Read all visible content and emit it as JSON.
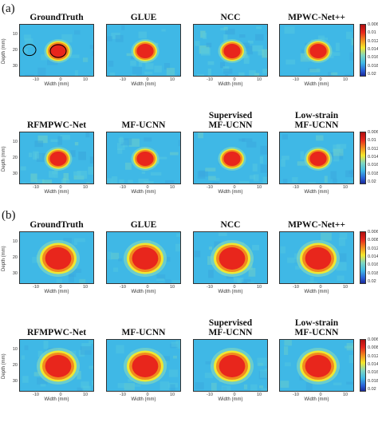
{
  "sections": [
    {
      "label": "(a)",
      "colorbar_ticks": [
        "0.006",
        "0.01",
        "0.012",
        "0.014",
        "0.016",
        "0.018",
        "0.02"
      ],
      "lesion": "small",
      "panels": [
        {
          "title": "GroundTruth",
          "ylabel": "Depth (mm)",
          "xlabel": "Width (mm)",
          "yticks": [
            "10",
            "20",
            "30"
          ],
          "xticks": [
            "-10",
            "0",
            "10"
          ],
          "markers": true,
          "noise": 0.15
        },
        {
          "title": "GLUE",
          "ylabel": "",
          "xlabel": "Width (mm)",
          "yticks": [],
          "xticks": [
            "-10",
            "0",
            "10"
          ],
          "markers": false,
          "noise": 0.3
        },
        {
          "title": "NCC",
          "ylabel": "",
          "xlabel": "Width (mm)",
          "yticks": [],
          "xticks": [
            "-10",
            "0",
            "10"
          ],
          "markers": false,
          "noise": 0.5
        },
        {
          "title": "MPWC-Net++",
          "ylabel": "",
          "xlabel": "Width (mm)",
          "yticks": [],
          "xticks": [
            "-10",
            "0",
            "10"
          ],
          "markers": false,
          "noise": 0.25
        },
        {
          "title": "RFMPWC-Net",
          "ylabel": "Depth (mm)",
          "xlabel": "Width (mm)",
          "yticks": [
            "10",
            "20",
            "30"
          ],
          "xticks": [
            "-10",
            "0",
            "10"
          ],
          "markers": false,
          "noise": 0.45
        },
        {
          "title": "MF-UCNN",
          "ylabel": "",
          "xlabel": "Width (mm)",
          "yticks": [],
          "xticks": [
            "-10",
            "0",
            "10"
          ],
          "markers": false,
          "noise": 0.3
        },
        {
          "title": "Supervised\nMF-UCNN",
          "ylabel": "",
          "xlabel": "Width (mm)",
          "yticks": [],
          "xticks": [
            "-10",
            "0",
            "10"
          ],
          "markers": false,
          "noise": 0.3
        },
        {
          "title": "Low-strain\nMF-UCNN",
          "ylabel": "",
          "xlabel": "Width (mm)",
          "yticks": [],
          "xticks": [
            "-10",
            "0",
            "10"
          ],
          "markers": false,
          "noise": 0.3
        }
      ]
    },
    {
      "label": "(b)",
      "colorbar_ticks": [
        "0.006",
        "0.008",
        "0.012",
        "0.014",
        "0.016",
        "0.018",
        "0.02"
      ],
      "lesion": "large",
      "panels": [
        {
          "title": "GroundTruth",
          "ylabel": "Depth (mm)",
          "xlabel": "Width (mm)",
          "yticks": [
            "10",
            "20",
            "30"
          ],
          "xticks": [
            "-10",
            "0",
            "10"
          ],
          "markers": false,
          "noise": 0.1
        },
        {
          "title": "GLUE",
          "ylabel": "",
          "xlabel": "Width (mm)",
          "yticks": [],
          "xticks": [
            "-10",
            "0",
            "10"
          ],
          "markers": false,
          "noise": 0.2
        },
        {
          "title": "NCC",
          "ylabel": "",
          "xlabel": "Width (mm)",
          "yticks": [],
          "xticks": [
            "-10",
            "0",
            "10"
          ],
          "markers": false,
          "noise": 0.35
        },
        {
          "title": "MPWC-Net++",
          "ylabel": "",
          "xlabel": "Width (mm)",
          "yticks": [],
          "xticks": [
            "-10",
            "0",
            "10"
          ],
          "markers": false,
          "noise": 0.2
        },
        {
          "title": "RFMPWC-Net",
          "ylabel": "Depth (mm)",
          "xlabel": "Width (mm)",
          "yticks": [
            "10",
            "20",
            "30"
          ],
          "xticks": [
            "-10",
            "0",
            "10"
          ],
          "markers": false,
          "noise": 0.25
        },
        {
          "title": "MF-UCNN",
          "ylabel": "",
          "xlabel": "Width (mm)",
          "yticks": [],
          "xticks": [
            "-10",
            "0",
            "10"
          ],
          "markers": false,
          "noise": 0.2
        },
        {
          "title": "Supervised\nMF-UCNN",
          "ylabel": "",
          "xlabel": "Width (mm)",
          "yticks": [],
          "xticks": [
            "-10",
            "0",
            "10"
          ],
          "markers": false,
          "noise": 0.2
        },
        {
          "title": "Low-strain\nMF-UCNN",
          "ylabel": "",
          "xlabel": "Width (mm)",
          "yticks": [],
          "xticks": [
            "-10",
            "0",
            "10"
          ],
          "markers": false,
          "noise": 0.2
        }
      ]
    }
  ],
  "colors": {
    "background": "#3fb8e6",
    "background_alt": "#55c8e0",
    "lesion_core": "#e8261c",
    "lesion_mid": "#f28a1e",
    "lesion_edge": "#f5e82a",
    "marker": "#000000"
  }
}
